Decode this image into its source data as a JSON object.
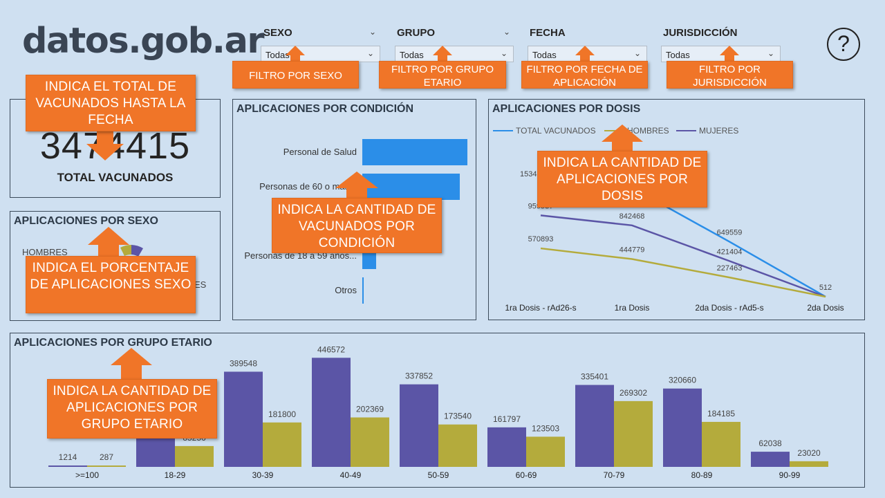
{
  "logo": "datos.gob.ar",
  "filters": [
    {
      "title": "SEXO",
      "value": "Todas"
    },
    {
      "title": "GRUPO",
      "value": "Todas"
    },
    {
      "title": "FECHA",
      "value": "Todas"
    },
    {
      "title": "JURISDICCIÓN",
      "value": "Todas"
    }
  ],
  "help_symbol": "?",
  "total": {
    "value": "3474415",
    "label": "TOTAL VACUNADOS"
  },
  "sexo_panel": {
    "title": "APLICACIONES POR SEXO",
    "hombres": "HOMBRES",
    "mujeres_partial": "ES"
  },
  "condicion_panel": {
    "title": "APLICACIONES POR CONDICIÓN"
  },
  "dosis_panel": {
    "title": "APLICACIONES POR DOSIS",
    "legend_total": "TOTAL VACUNADOS",
    "legend_hombres": "HOMBRES",
    "legend_mujeres": "MUJERES",
    "partial_label": "1534"
  },
  "etario_panel": {
    "title": "APLICACIONES POR GRUPO ETARIO"
  },
  "callouts": {
    "sexo": "FILTRO POR SEXO",
    "grupo": "FILTRO POR GRUPO ETARIO",
    "fecha": "FILTRO POR FECHA DE APLICACIÓN",
    "jurisdiccion": "FILTRO POR JURISDICCIÓN",
    "total": "INDICA EL TOTAL DE VACUNADOS HASTA LA FECHA",
    "condicion": "INDICA LA CANTIDAD DE VACUNADOS POR CONDICIÓN",
    "dosis": "INDICA LA CANTIDAD DE APLICACIONES POR DOSIS",
    "sexo_pct": "INDICA EL PORCENTAJE DE APLICACIONES SEXO",
    "etario": "INDICA LA CANTIDAD DE APLICACIONES POR GRUPO ETARIO"
  },
  "colors": {
    "purple": "#5b55a6",
    "olive": "#b4ab3c",
    "blue": "#2b8ee8",
    "orange": "#f07528"
  },
  "chart_data": [
    {
      "type": "bar",
      "title": "APLICACIONES POR CONDICIÓN",
      "categories": [
        "Personal de Salud",
        "Personas de 60 o más años",
        "Personas de 18 a 59 años...",
        "Otros"
      ],
      "category_labels": [
        "Personal de Salud",
        "Personas de 60 o más a",
        "Personas de 18 a 59 años...",
        "Otros"
      ],
      "values": [
        100,
        93,
        13,
        1
      ]
    },
    {
      "type": "line",
      "title": "APLICACIONES POR DOSIS",
      "categories": [
        "1ra Dosis - rAd26-s",
        "1ra Dosis",
        "2da Dosis - rAd5-s",
        "2da Dosis"
      ],
      "series": [
        {
          "name": "TOTAL VACUNADOS",
          "values": [
            1534000,
            1287000,
            649559,
            512
          ],
          "labels": [
            "",
            "",
            "649559",
            "512"
          ]
        },
        {
          "name": "MUJERES",
          "values": [
            959937,
            842468,
            421404,
            0
          ],
          "labels": [
            "959937",
            "842468",
            "421404",
            ""
          ]
        },
        {
          "name": "HOMBRES",
          "values": [
            570893,
            444779,
            227463,
            0
          ],
          "labels": [
            "570893",
            "444779",
            "227463",
            ""
          ]
        }
      ]
    },
    {
      "type": "bar",
      "title": "APLICACIONES POR GRUPO ETARIO",
      "categories": [
        ">=100",
        "18-29",
        "30-39",
        "40-49",
        "50-59",
        "60-69",
        "70-79",
        "80-89",
        "90-99"
      ],
      "series": [
        {
          "name": "MUJERES",
          "values": [
            1214,
            230000,
            389548,
            446572,
            337852,
            161797,
            335401,
            320660,
            62038
          ],
          "labels": [
            "1214",
            "",
            "389548",
            "446572",
            "337852",
            "161797",
            "335401",
            "320660",
            "62038"
          ]
        },
        {
          "name": "HOMBRES",
          "values": [
            287,
            85256,
            181800,
            202369,
            173540,
            123503,
            269302,
            184185,
            23020
          ],
          "labels": [
            "287",
            "85256",
            "181800",
            "202369",
            "173540",
            "123503",
            "269302",
            "184185",
            "23020"
          ]
        }
      ]
    }
  ]
}
